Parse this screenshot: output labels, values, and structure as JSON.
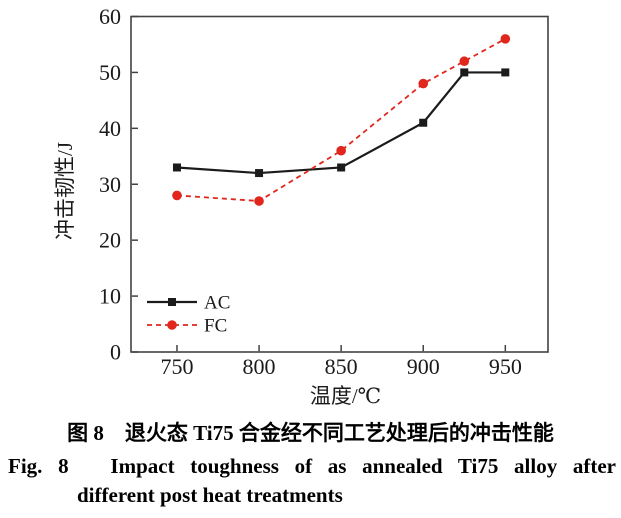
{
  "figure": {
    "caption_zh": "图 8　退火态 Ti75 合金经不同工艺处理后的冲击性能",
    "caption_en_line1": "Fig. 8　Impact toughness of as annealed Ti75 alloy after",
    "caption_en_line2": "different post heat treatments"
  },
  "chart_data": {
    "type": "line",
    "title": "",
    "xlabel": "温度/℃",
    "ylabel": "冲击韧性/J",
    "x": [
      750,
      800,
      850,
      900,
      925,
      950
    ],
    "series": [
      {
        "name": "AC",
        "color": "#1b1b1b",
        "line_style": "solid",
        "marker": "square",
        "values": [
          33,
          32,
          33,
          41,
          50,
          50
        ]
      },
      {
        "name": "FC",
        "color": "#e0261d",
        "line_style": "dashed",
        "marker": "circle",
        "values": [
          28,
          27,
          36,
          48,
          52,
          56
        ]
      }
    ],
    "x_ticks": [
      750,
      800,
      850,
      900,
      950
    ],
    "y_ticks": [
      0,
      10,
      20,
      30,
      40,
      50,
      60
    ],
    "xlim": [
      722,
      976
    ],
    "ylim": [
      0,
      60
    ],
    "grid": false,
    "legend_position": "lower-left",
    "frame_color": "#424242",
    "text_color": "#1a1a1a"
  }
}
